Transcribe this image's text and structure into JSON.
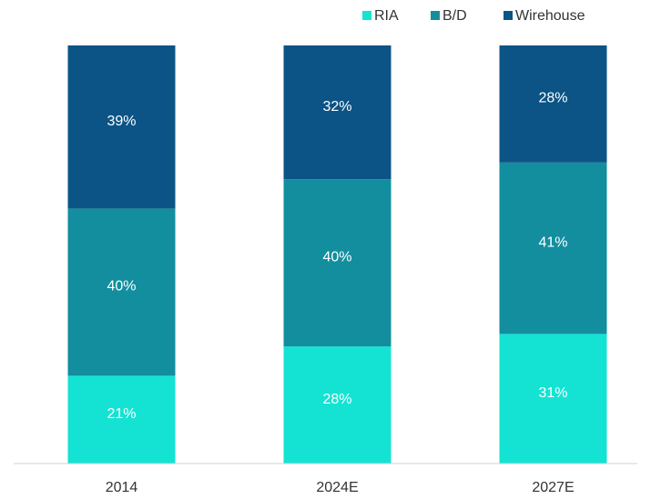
{
  "chart_data": {
    "type": "stacked_bar",
    "categories": [
      "2014",
      "2024E",
      "2027E"
    ],
    "series": [
      {
        "name": "RIA",
        "color": "#14e3d3",
        "values": [
          21,
          28,
          31
        ],
        "value_labels": [
          "21%",
          "28%",
          "31%"
        ]
      },
      {
        "name": "B/D",
        "color": "#138e9e",
        "values": [
          40,
          40,
          41
        ],
        "value_labels": [
          "40%",
          "40%",
          "41%"
        ]
      },
      {
        "name": "Wirehouse",
        "color": "#0b5485",
        "values": [
          39,
          32,
          28
        ],
        "value_labels": [
          "39%",
          "32%",
          "28%"
        ]
      }
    ],
    "legend": "top-right"
  }
}
